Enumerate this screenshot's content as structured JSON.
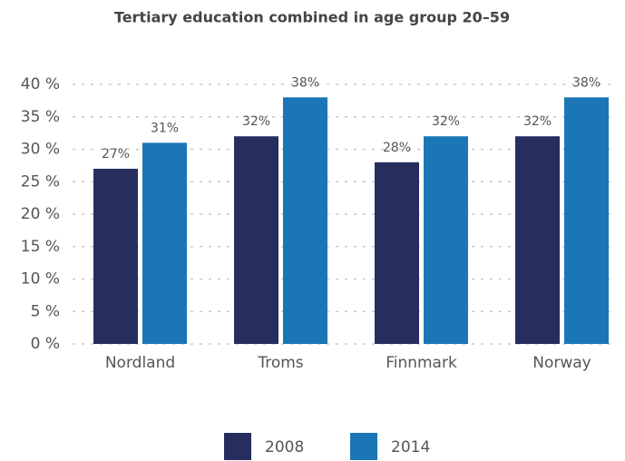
{
  "chart_data": {
    "type": "bar",
    "title": "Tertiary education combined in age group 20–59",
    "categories": [
      "Nordland",
      "Troms",
      "Finnmark",
      "Norway"
    ],
    "series": [
      {
        "name": "2008",
        "color": "#252e5e",
        "values": [
          27,
          32,
          28,
          32
        ],
        "value_labels": [
          "27%",
          "32%",
          "28%",
          "32%"
        ]
      },
      {
        "name": "2014",
        "color": "#1a76b4",
        "values": [
          31,
          38,
          32,
          38
        ],
        "value_labels": [
          "31%",
          "38%",
          "32%",
          "38%"
        ]
      }
    ],
    "ylim": [
      0,
      40
    ],
    "yticks": [
      {
        "value": 0,
        "label": "0 %"
      },
      {
        "value": 5,
        "label": "5 %"
      },
      {
        "value": 10,
        "label": "10 %"
      },
      {
        "value": 15,
        "label": "15 %"
      },
      {
        "value": 20,
        "label": "20 %"
      },
      {
        "value": 25,
        "label": "25 %"
      },
      {
        "value": 30,
        "label": "30 %"
      },
      {
        "value": 35,
        "label": "35 %"
      },
      {
        "value": 40,
        "label": "40 %"
      }
    ],
    "grid": true,
    "legend": "bottom"
  }
}
